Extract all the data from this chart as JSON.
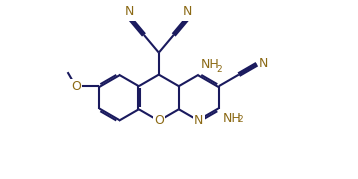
{
  "bg_color": "#ffffff",
  "bond_color": "#1a1a5e",
  "label_color": "#8B6914",
  "lw": 1.5,
  "fs": 9.0,
  "fs_sub": 6.5,
  "BL": 0.3
}
